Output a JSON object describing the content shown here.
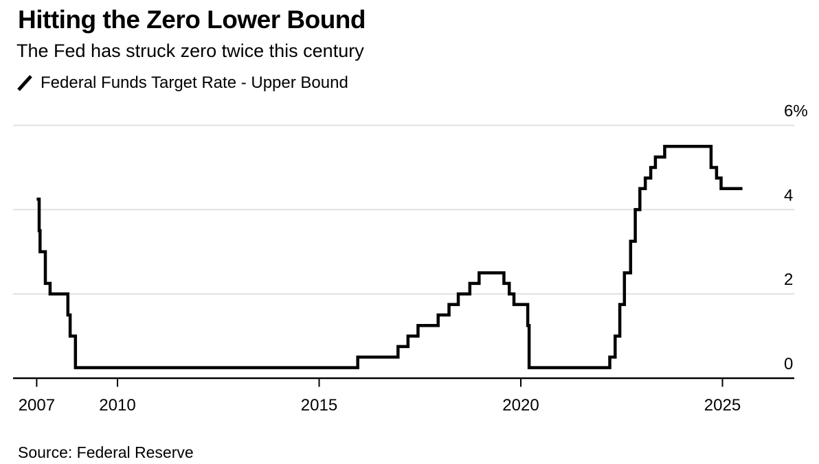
{
  "chart_data": {
    "type": "line",
    "step": true,
    "title": "Hitting the Zero Lower Bound",
    "subtitle": "The Fed has struck zero twice this century",
    "series_name": "Federal Funds Target Rate - Upper Bound",
    "source": "Source: Federal Reserve",
    "unit": "%",
    "line_color": "#000000",
    "grid_color": "#e0e0e0",
    "ylim": [
      0,
      6
    ],
    "y_ticks": [
      {
        "value": 0,
        "label": "0"
      },
      {
        "value": 2,
        "label": "2"
      },
      {
        "value": 4,
        "label": "4"
      },
      {
        "value": 6,
        "label": "6%"
      }
    ],
    "x_tick_labels": [
      "2007",
      "2010",
      "2015",
      "2020",
      "2025"
    ],
    "legend_position": "top-left",
    "axis_labels_position": "right",
    "steps": [
      {
        "date": "2007-12-31",
        "rate": 4.25
      },
      {
        "date": "2008-01-22",
        "rate": 3.5
      },
      {
        "date": "2008-01-30",
        "rate": 3.0
      },
      {
        "date": "2008-03-18",
        "rate": 2.25
      },
      {
        "date": "2008-04-30",
        "rate": 2.0
      },
      {
        "date": "2008-10-08",
        "rate": 1.5
      },
      {
        "date": "2008-10-29",
        "rate": 1.0
      },
      {
        "date": "2008-12-16",
        "rate": 0.25
      },
      {
        "date": "2015-12-17",
        "rate": 0.5
      },
      {
        "date": "2016-12-15",
        "rate": 0.75
      },
      {
        "date": "2017-03-16",
        "rate": 1.0
      },
      {
        "date": "2017-06-15",
        "rate": 1.25
      },
      {
        "date": "2017-12-14",
        "rate": 1.5
      },
      {
        "date": "2018-03-22",
        "rate": 1.75
      },
      {
        "date": "2018-06-14",
        "rate": 2.0
      },
      {
        "date": "2018-09-27",
        "rate": 2.25
      },
      {
        "date": "2018-12-20",
        "rate": 2.5
      },
      {
        "date": "2019-08-01",
        "rate": 2.25
      },
      {
        "date": "2019-09-19",
        "rate": 2.0
      },
      {
        "date": "2019-10-31",
        "rate": 1.75
      },
      {
        "date": "2020-03-04",
        "rate": 1.25
      },
      {
        "date": "2020-03-16",
        "rate": 0.25
      },
      {
        "date": "2022-03-17",
        "rate": 0.5
      },
      {
        "date": "2022-05-05",
        "rate": 1.0
      },
      {
        "date": "2022-06-16",
        "rate": 1.75
      },
      {
        "date": "2022-07-28",
        "rate": 2.5
      },
      {
        "date": "2022-09-22",
        "rate": 3.25
      },
      {
        "date": "2022-11-03",
        "rate": 4.0
      },
      {
        "date": "2022-12-15",
        "rate": 4.5
      },
      {
        "date": "2023-02-02",
        "rate": 4.75
      },
      {
        "date": "2023-03-23",
        "rate": 5.0
      },
      {
        "date": "2023-05-04",
        "rate": 5.25
      },
      {
        "date": "2023-07-27",
        "rate": 5.5
      },
      {
        "date": "2024-09-19",
        "rate": 5.0
      },
      {
        "date": "2024-11-08",
        "rate": 4.75
      },
      {
        "date": "2024-12-19",
        "rate": 4.5
      }
    ],
    "end_date": "2025-07-01"
  }
}
